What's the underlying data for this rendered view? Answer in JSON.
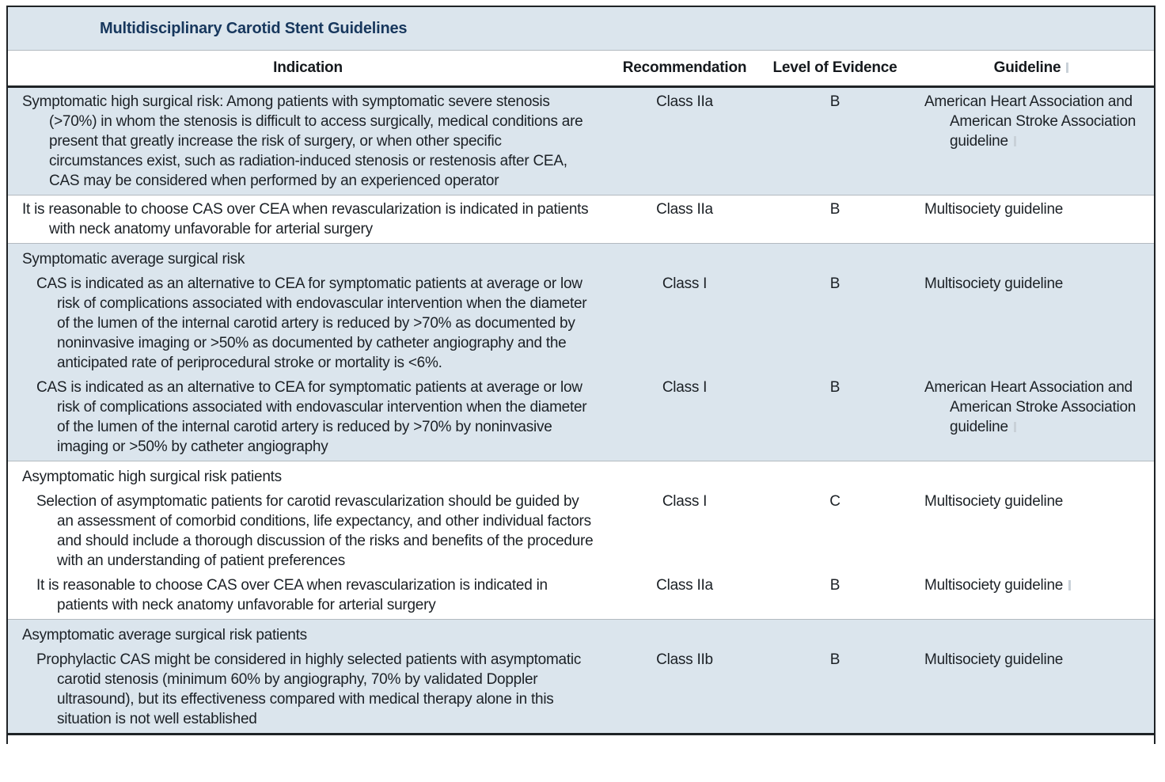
{
  "table": {
    "title": "Multidisciplinary Carotid Stent Guidelines",
    "columns": {
      "indication": "Indication",
      "recommendation": "Recommendation",
      "evidence": "Level of Evidence",
      "guideline": "Guideline"
    },
    "header_guideline_mark": true,
    "colors": {
      "row_shade_blue": "#dbe5ed",
      "row_shade_white": "#ffffff",
      "title_navy": "#17375d",
      "body_text": "#1c2126",
      "border_dark": "#1f2326",
      "separator_gray": "#b3bac0"
    },
    "groups": [
      {
        "shade": "blue",
        "rows": [
          {
            "type": "entry",
            "indent": false,
            "indication": "Symptomatic high surgical risk: Among patients with symptomatic severe stenosis (>70%) in whom the stenosis is difficult to access surgically, medical conditions are present that greatly increase the risk of surgery, or when other specific circumstances exist, such as radiation-induced stenosis or restenosis after CEA, CAS may be considered when performed by an experienced operator",
            "recommendation": "Class IIa",
            "evidence": "B",
            "guideline": "American Heart Association and American Stroke Association guideline",
            "guideline_mark": true
          }
        ]
      },
      {
        "shade": "white",
        "rows": [
          {
            "type": "entry",
            "indent": false,
            "indication": "It is reasonable to choose CAS over CEA when revascularization is indicated in patients with neck anatomy unfavorable for arterial surgery",
            "recommendation": "Class IIa",
            "evidence": "B",
            "guideline": "Multisociety guideline",
            "guideline_mark": false
          }
        ]
      },
      {
        "shade": "blue",
        "rows": [
          {
            "type": "section",
            "indication": "Symptomatic average surgical risk"
          },
          {
            "type": "entry",
            "indent": true,
            "indication": "CAS is indicated as an alternative to CEA for symptomatic patients at average or low risk of complications associated with endovascular intervention when the diameter of the lumen of the internal carotid artery is reduced by >70% as documented by noninvasive imaging or >50% as documented by catheter angiography and the anticipated rate of periprocedural stroke or mortality is <6%.",
            "recommendation": "Class I",
            "evidence": "B",
            "guideline": "Multisociety guideline",
            "guideline_mark": false
          },
          {
            "type": "entry",
            "indent": true,
            "indication": "CAS is indicated as an alternative to CEA for symptomatic patients at average or low risk of complications associated with endovascular intervention when the diameter of the lumen of the internal carotid artery is reduced by >70% by noninvasive imaging or >50% by catheter angiography",
            "recommendation": "Class I",
            "evidence": "B",
            "guideline": "American Heart Association and American Stroke Association guideline",
            "guideline_mark": true
          }
        ]
      },
      {
        "shade": "white",
        "rows": [
          {
            "type": "section",
            "indication": "Asymptomatic high surgical risk patients"
          },
          {
            "type": "entry",
            "indent": true,
            "indication": "Selection of asymptomatic patients for carotid revascularization should be guided by an assessment of comorbid conditions, life expectancy, and other individual factors and should include a thorough discussion of the risks and benefits of the procedure with an understanding of patient preferences",
            "recommendation": "Class I",
            "evidence": "C",
            "guideline": "Multisociety guideline",
            "guideline_mark": false
          },
          {
            "type": "entry",
            "indent": true,
            "indication": "It is reasonable to choose CAS over CEA when revascularization is indicated in patients with neck anatomy unfavorable for arterial surgery",
            "recommendation": "Class IIa",
            "evidence": "B",
            "guideline": "Multisociety guideline",
            "guideline_mark": true
          }
        ]
      },
      {
        "shade": "blue",
        "rows": [
          {
            "type": "section",
            "indication": "Asymptomatic average surgical risk patients"
          },
          {
            "type": "entry",
            "indent": true,
            "indication": "Prophylactic CAS might be considered in highly selected patients with asymptomatic carotid stenosis (minimum 60% by angiography, 70% by validated Doppler ultrasound), but its effectiveness compared with medical therapy alone in this situation is not well established",
            "recommendation": "Class IIb",
            "evidence": "B",
            "guideline": "Multisociety guideline",
            "guideline_mark": false
          }
        ]
      }
    ]
  }
}
